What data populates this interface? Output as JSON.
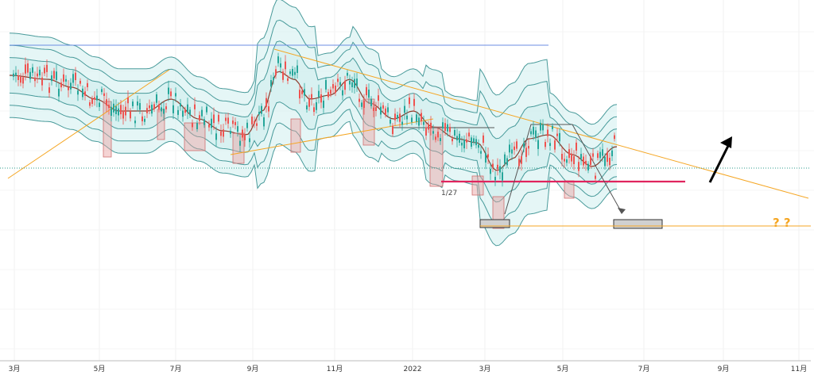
{
  "chart_data": {
    "type": "candlestick",
    "x_ticks": [
      "3月",
      "5月",
      "7月",
      "9月",
      "11月",
      "2022",
      "3月",
      "5月",
      "7月",
      "9月",
      "11月"
    ],
    "annotations": {
      "date_label": "1/27",
      "question_marks": "? ?"
    },
    "colors": {
      "up": "#26a69a",
      "down": "#ef5350",
      "band_line": "#2b8a8a",
      "band_fill": "#cfeeee",
      "mid_line": "#8b3a2a",
      "blue_line": "#6b8de3",
      "orange_line": "#f5a623",
      "magenta_line": "#e0245e",
      "dotted_line": "#2e9e8e",
      "highlight_box": "#e8a0a0",
      "gray_box": "#d0d0d0"
    }
  }
}
